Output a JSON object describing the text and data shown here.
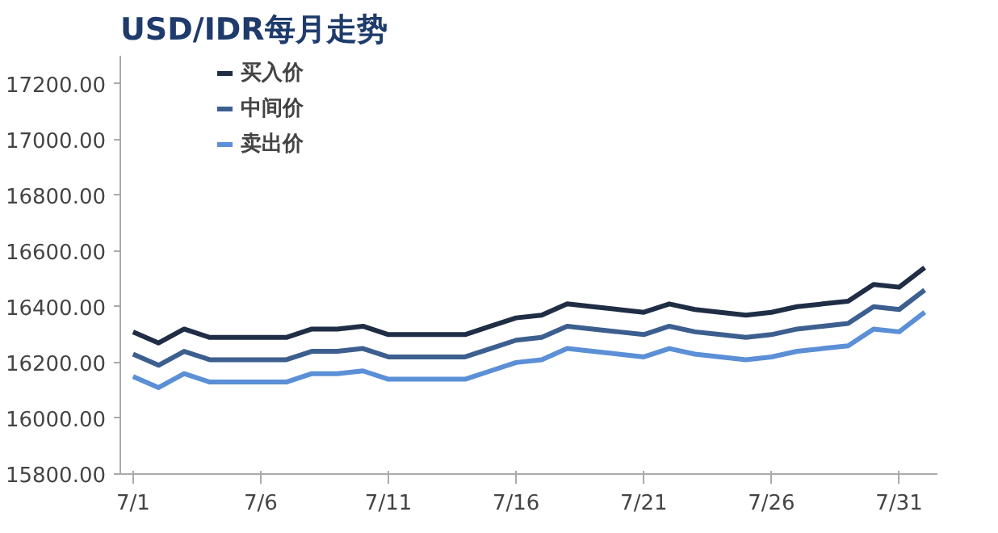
{
  "chart_data": {
    "type": "line",
    "title": "USD/IDR每月走势",
    "categories": [
      "7/1",
      null,
      null,
      null,
      null,
      "7/6",
      null,
      null,
      null,
      null,
      "7/11",
      null,
      null,
      null,
      null,
      "7/16",
      null,
      null,
      null,
      null,
      "7/21",
      null,
      null,
      null,
      null,
      "7/26",
      null,
      null,
      null,
      null,
      "7/31",
      null
    ],
    "series": [
      {
        "name": "买入价",
        "color": "#1f2d45",
        "values": [
          16310,
          16270,
          16320,
          16290,
          16290,
          16290,
          16290,
          16320,
          16320,
          16330,
          16300,
          16300,
          16300,
          16300,
          16330,
          16360,
          16370,
          16410,
          16400,
          16390,
          16380,
          16410,
          16390,
          16380,
          16370,
          16380,
          16400,
          16410,
          16420,
          16480,
          16470,
          16540
        ]
      },
      {
        "name": "中间价",
        "color": "#3d5f8f",
        "values": [
          16230,
          16190,
          16240,
          16210,
          16210,
          16210,
          16210,
          16240,
          16240,
          16250,
          16220,
          16220,
          16220,
          16220,
          16250,
          16280,
          16290,
          16330,
          16320,
          16310,
          16300,
          16330,
          16310,
          16300,
          16290,
          16300,
          16320,
          16330,
          16340,
          16400,
          16390,
          16460
        ]
      },
      {
        "name": "卖出价",
        "color": "#5b8fd6",
        "values": [
          16150,
          16110,
          16160,
          16130,
          16130,
          16130,
          16130,
          16160,
          16160,
          16170,
          16140,
          16140,
          16140,
          16140,
          16170,
          16200,
          16210,
          16250,
          16240,
          16230,
          16220,
          16250,
          16230,
          16220,
          16210,
          16220,
          16240,
          16250,
          16260,
          16320,
          16310,
          16380
        ]
      }
    ],
    "ylim": [
      15800,
      17300
    ],
    "yticks": [
      {
        "value": 15800,
        "label": "15800.00"
      },
      {
        "value": 16000,
        "label": "16000.00"
      },
      {
        "value": 16200,
        "label": "16200.00"
      },
      {
        "value": 16400,
        "label": "16400.00"
      },
      {
        "value": 16600,
        "label": "16600.00"
      },
      {
        "value": 16800,
        "label": "16800.00"
      },
      {
        "value": 17000,
        "label": "17000.00"
      },
      {
        "value": 17200,
        "label": "17200.00"
      }
    ],
    "grid": false,
    "legend": "top left",
    "marker": "none",
    "line_style": "solid"
  }
}
